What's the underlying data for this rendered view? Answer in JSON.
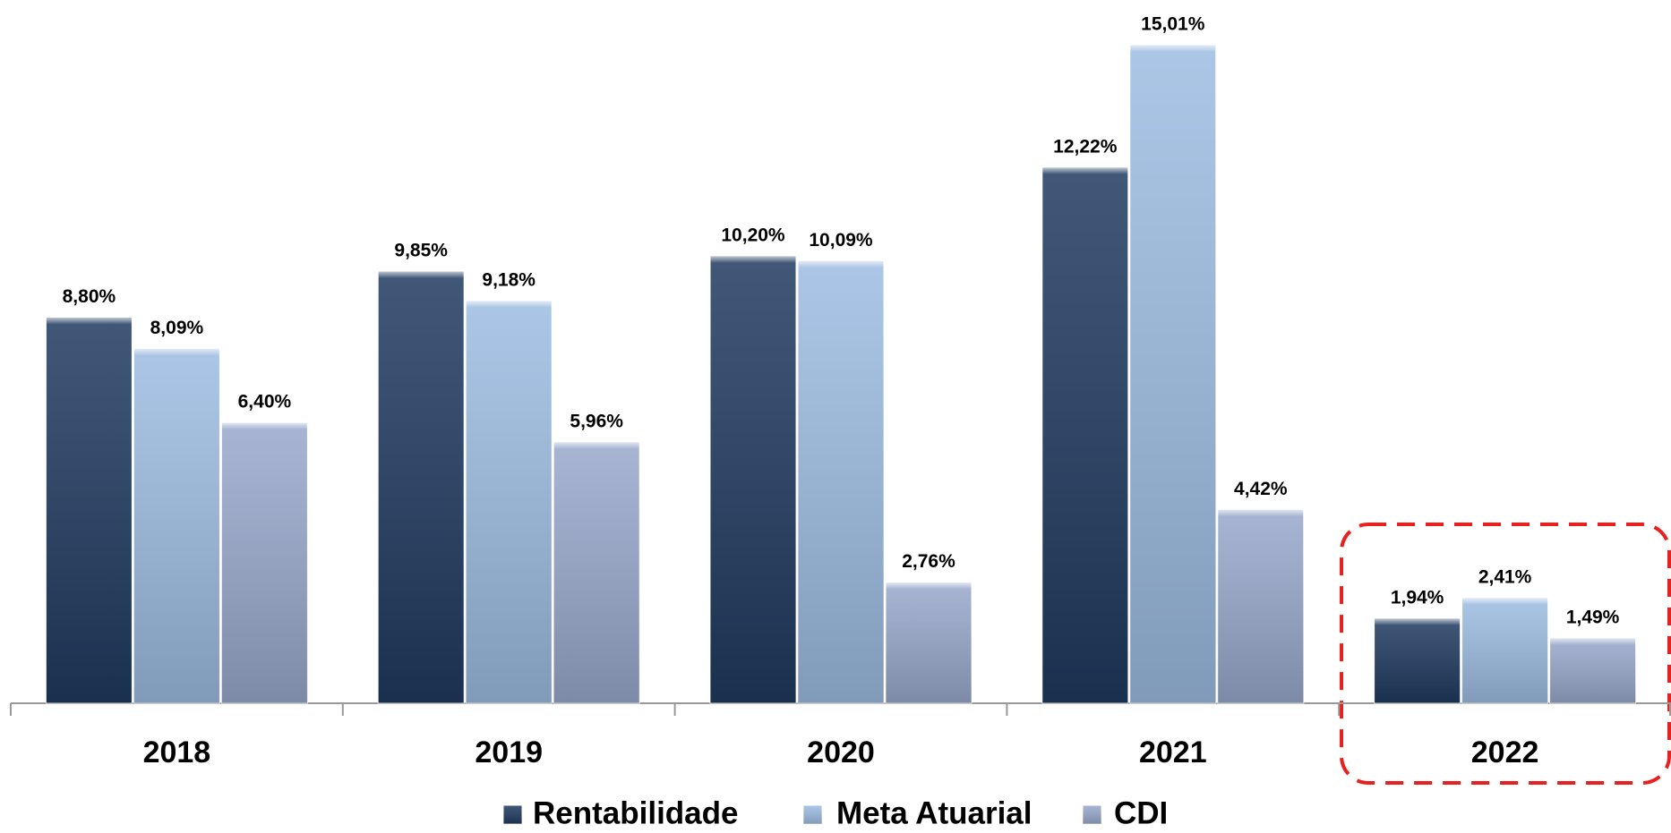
{
  "chart_data": {
    "type": "bar",
    "categories": [
      "2018",
      "2019",
      "2020",
      "2021",
      "2022"
    ],
    "series": [
      {
        "name": "Rentabilidade",
        "color": "#1f3a60",
        "values": [
          8.8,
          9.85,
          10.2,
          12.22,
          1.94
        ],
        "value_labels": [
          "8,80%",
          "9,85%",
          "10,20%",
          "12,22%",
          "1,94%"
        ]
      },
      {
        "name": "Meta Atuarial",
        "color": "#9dbce2",
        "values": [
          8.09,
          9.18,
          10.09,
          15.01,
          2.41
        ],
        "value_labels": [
          "8,09%",
          "9,18%",
          "10,09%",
          "15,01%",
          "2,41%"
        ]
      },
      {
        "name": "CDI",
        "color": "#98a8cc",
        "values": [
          6.4,
          5.96,
          2.76,
          4.42,
          1.49
        ],
        "value_labels": [
          "6,40%",
          "5,96%",
          "2,76%",
          "4,42%",
          "1,49%"
        ]
      }
    ]
  }
}
